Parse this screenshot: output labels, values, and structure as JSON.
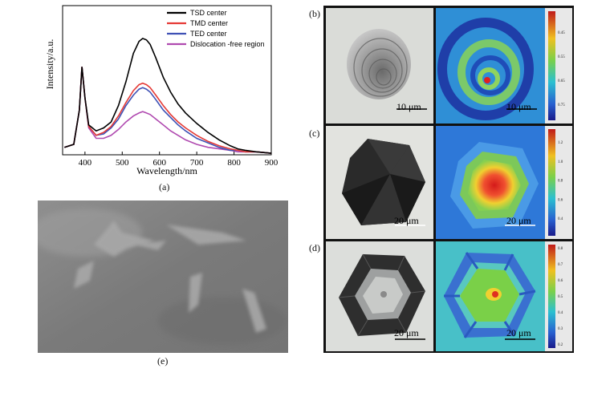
{
  "panels": {
    "a": "(a)",
    "b": "(b)",
    "c": "(c)",
    "d": "(d)",
    "e": "(e)"
  },
  "scalebars": {
    "b_left": "10 μm",
    "b_right": "10 μm",
    "c_left": "20 μm",
    "c_right": "20 μm",
    "d_left": "20 μm",
    "d_right": "20 μm"
  },
  "colorbar_ticks": {
    "b": [
      "0.45",
      "0.55",
      "0.65",
      "0.75"
    ],
    "c": [
      "1.2",
      "1.0",
      "0.8",
      "0.6",
      "0.4"
    ],
    "d": [
      "0.8",
      "0.7",
      "0.6",
      "0.5",
      "0.4",
      "0.3",
      "0.2"
    ]
  },
  "chart_data": {
    "type": "line",
    "xlabel": "Wavelength/nm",
    "ylabel": "Intensity/a.u.",
    "xlim": [
      340,
      900
    ],
    "ylim": [
      0,
      1.0
    ],
    "xticks": [
      400,
      500,
      600,
      700,
      800,
      900
    ],
    "legend_position": "top-right",
    "series": [
      {
        "name": "TSD center",
        "color": "#000000",
        "x": [
          345,
          370,
          385,
          392,
          400,
          410,
          430,
          450,
          470,
          490,
          510,
          530,
          545,
          555,
          565,
          575,
          590,
          610,
          630,
          650,
          670,
          700,
          730,
          760,
          790,
          810,
          830,
          860,
          900
        ],
        "y": [
          0.05,
          0.07,
          0.3,
          0.59,
          0.38,
          0.2,
          0.16,
          0.18,
          0.22,
          0.33,
          0.49,
          0.68,
          0.76,
          0.78,
          0.77,
          0.74,
          0.65,
          0.52,
          0.42,
          0.34,
          0.28,
          0.21,
          0.15,
          0.1,
          0.06,
          0.04,
          0.03,
          0.02,
          0.01
        ]
      },
      {
        "name": "TMD center",
        "color": "#e53935",
        "x": [
          345,
          370,
          385,
          392,
          400,
          410,
          430,
          450,
          470,
          490,
          510,
          530,
          545,
          555,
          565,
          575,
          590,
          610,
          630,
          650,
          670,
          700,
          730,
          760,
          790,
          810,
          830,
          860,
          900
        ],
        "y": [
          0.05,
          0.07,
          0.3,
          0.59,
          0.38,
          0.19,
          0.13,
          0.15,
          0.19,
          0.26,
          0.35,
          0.43,
          0.47,
          0.48,
          0.47,
          0.45,
          0.4,
          0.33,
          0.27,
          0.22,
          0.18,
          0.13,
          0.09,
          0.06,
          0.04,
          0.03,
          0.02,
          0.02,
          0.01
        ]
      },
      {
        "name": "TED center",
        "color": "#3f51b5",
        "x": [
          345,
          370,
          385,
          392,
          400,
          410,
          430,
          450,
          470,
          490,
          510,
          530,
          545,
          555,
          565,
          575,
          590,
          610,
          630,
          650,
          670,
          700,
          730,
          760,
          790,
          810,
          830,
          860,
          900
        ],
        "y": [
          0.05,
          0.07,
          0.3,
          0.59,
          0.38,
          0.19,
          0.13,
          0.14,
          0.18,
          0.24,
          0.33,
          0.4,
          0.44,
          0.45,
          0.44,
          0.42,
          0.37,
          0.3,
          0.25,
          0.2,
          0.16,
          0.11,
          0.08,
          0.05,
          0.03,
          0.03,
          0.02,
          0.02,
          0.01
        ]
      },
      {
        "name": "Dislocation -free region",
        "color": "#b04ab0",
        "x": [
          345,
          370,
          385,
          392,
          400,
          410,
          430,
          450,
          470,
          490,
          510,
          530,
          545,
          555,
          565,
          575,
          590,
          610,
          630,
          650,
          670,
          700,
          730,
          760,
          790,
          810,
          830,
          860,
          900
        ],
        "y": [
          0.05,
          0.07,
          0.3,
          0.59,
          0.38,
          0.18,
          0.11,
          0.11,
          0.13,
          0.17,
          0.22,
          0.26,
          0.28,
          0.29,
          0.28,
          0.27,
          0.24,
          0.2,
          0.16,
          0.13,
          0.1,
          0.07,
          0.05,
          0.04,
          0.03,
          0.02,
          0.02,
          0.02,
          0.01
        ]
      }
    ]
  }
}
